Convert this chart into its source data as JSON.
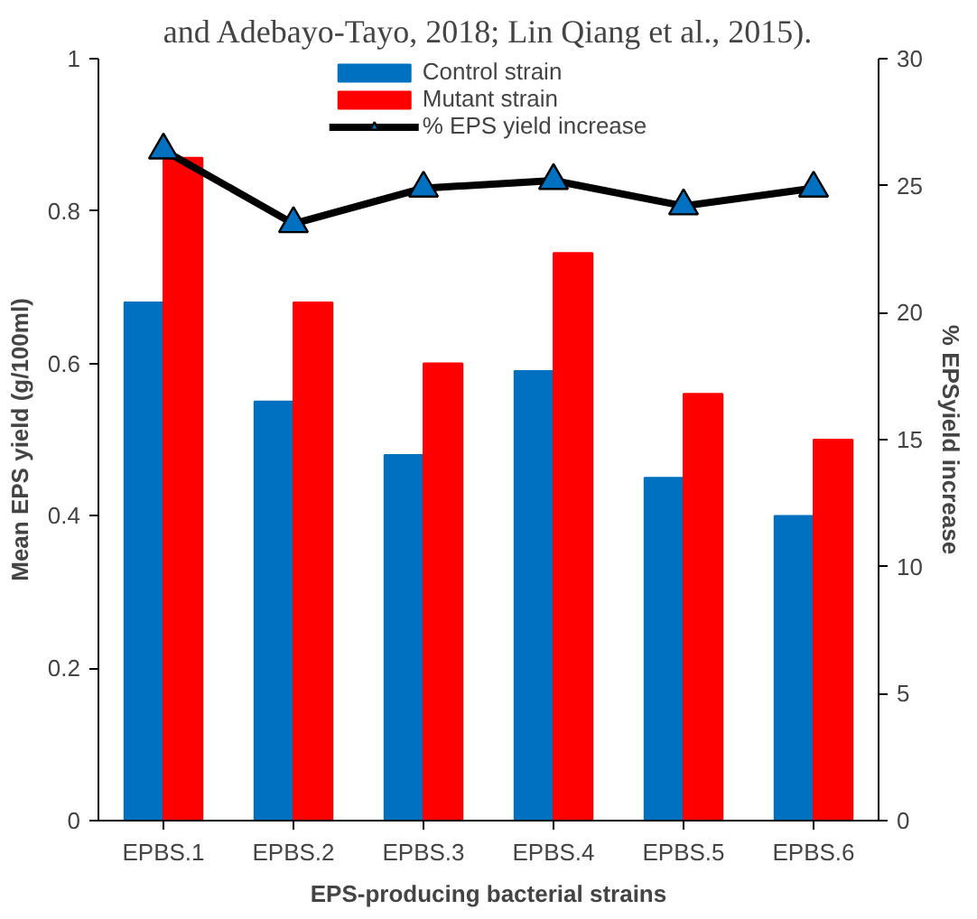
{
  "chart_data": {
    "type": "bar",
    "xlabel": "EPS-producing bacterial strains",
    "ylabel": "Mean EPS yield (g/100ml)",
    "y2label": "% EPSyield increase",
    "annotations": [
      "and Adebayo-Tayo, 2018; Lin Qiang et al., 2015)."
    ],
    "categories": [
      "EPBS.1",
      "EPBS.2",
      "EPBS.3",
      "EPBS.4",
      "EPBS.5",
      "EPBS.6"
    ],
    "series": [
      {
        "name": "Control strain",
        "color": "#0070c0",
        "values": [
          0.68,
          0.55,
          0.48,
          0.59,
          0.45,
          0.4
        ]
      },
      {
        "name": "Mutant strain",
        "color": "#ff0000",
        "values": [
          0.87,
          0.68,
          0.6,
          0.745,
          0.56,
          0.5
        ]
      },
      {
        "name": "% EPS yield increase",
        "type": "line",
        "axis": "y2",
        "color": "#000000",
        "marker": "triangle",
        "values": [
          26.4,
          23.5,
          24.9,
          25.2,
          24.2,
          24.9
        ]
      }
    ],
    "ylim": [
      0,
      1
    ],
    "yticks": [
      0,
      0.2,
      0.4,
      0.6,
      0.8,
      1
    ],
    "y2lim": [
      0,
      30
    ],
    "y2ticks": [
      0,
      5,
      10,
      15,
      20,
      25,
      30
    ],
    "grid": false,
    "legend": "top"
  }
}
